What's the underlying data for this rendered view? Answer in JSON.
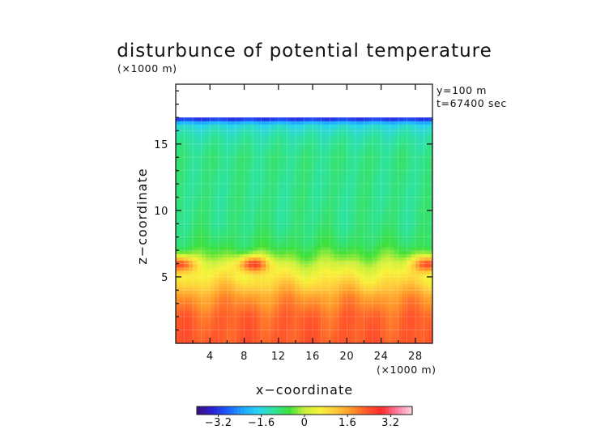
{
  "chart_data": {
    "type": "heatmap",
    "title": "disturbunce of potential temperature",
    "z_unit_label": "(×1000 m)",
    "x_unit_label": "(×1000 m)",
    "info_lines": [
      "y=100 m",
      "t=67400 sec"
    ],
    "xlabel": "x−coordinate",
    "ylabel": "z−coordinate",
    "xlim": [
      0,
      30
    ],
    "ylim": [
      0,
      19.5
    ],
    "x_ticks": [
      4,
      8,
      12,
      16,
      20,
      24,
      28
    ],
    "y_ticks": [
      5,
      10,
      15
    ],
    "data_top_z": 17,
    "colorbar": {
      "range": [
        -4.0,
        4.0
      ],
      "ticks": [
        -3.2,
        -1.6,
        0,
        1.6,
        3.2
      ],
      "tick_labels": [
        "−3.2",
        "−1.6",
        "0",
        "1.6",
        "3.2"
      ],
      "colors": [
        "#3a0f7a",
        "#2a1fd4",
        "#1e5cff",
        "#1ea6ff",
        "#2ad4f4",
        "#2fe39a",
        "#3ee03a",
        "#c7f03a",
        "#f7f23a",
        "#ffc93a",
        "#ff9a2a",
        "#ff5a2a",
        "#ff2a2a",
        "#ff7aa0",
        "#ffd6df"
      ]
    },
    "field_profile": [
      {
        "z": 0.0,
        "value": 2.3
      },
      {
        "z": 2.0,
        "value": 2.2
      },
      {
        "z": 3.5,
        "value": 1.7
      },
      {
        "z": 4.5,
        "value": 1.0
      },
      {
        "z": 5.5,
        "value": 0.4
      },
      {
        "z": 6.5,
        "value": -0.3
      },
      {
        "z": 7.5,
        "value": -0.8
      },
      {
        "z": 9.0,
        "value": -1.0
      },
      {
        "z": 12.0,
        "value": -1.05
      },
      {
        "z": 14.0,
        "value": -1.0
      },
      {
        "z": 15.5,
        "value": -1.2
      },
      {
        "z": 16.5,
        "value": -1.6
      },
      {
        "z": 17.0,
        "value": -3.6
      }
    ],
    "warm_anomalies": [
      {
        "x": 0.5,
        "z": 6.0,
        "value": 3.0
      },
      {
        "x": 9.0,
        "z": 6.0,
        "value": 3.0
      },
      {
        "x": 29.5,
        "z": 6.0,
        "value": 3.0
      }
    ]
  }
}
